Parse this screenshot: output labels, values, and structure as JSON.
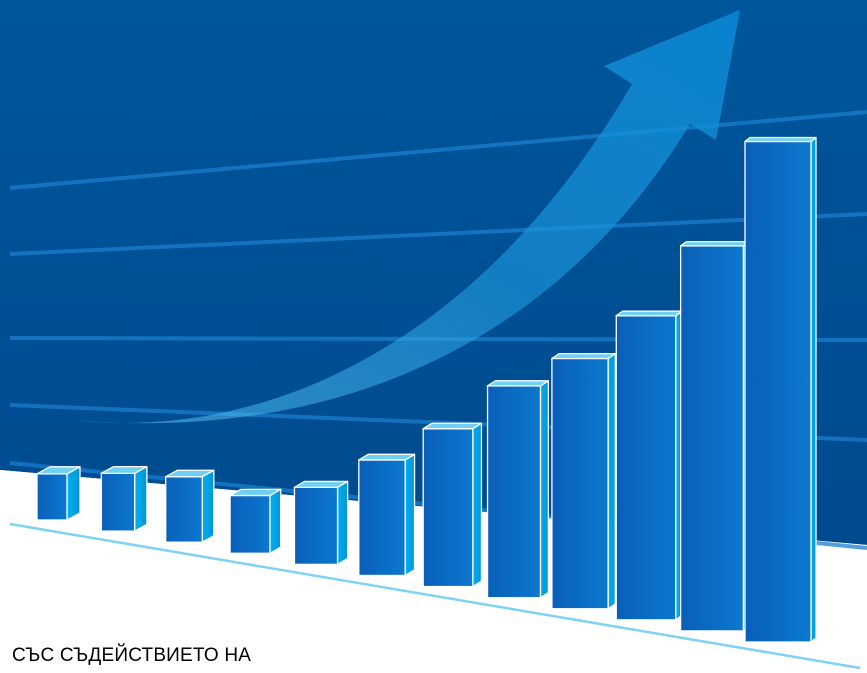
{
  "caption": "СЪС СЪДЕЙСТВИЕТО НА",
  "colors": {
    "background_top": "#00569a",
    "background_bottom": "#004a8f",
    "floor": "#ffffff",
    "bar_front": "#0a6fc6",
    "bar_side": "#02a6e6",
    "bar_top": "#6fd0f4",
    "bar_outline": "#ffffff",
    "arrow": "#2aa3e0",
    "grid_line": "#1a7fcf",
    "floor_line": "#7ed3f2"
  },
  "icons": {
    "arrow": "upward-trend-arrow-icon"
  },
  "chart_data": {
    "type": "bar",
    "categories": [
      "",
      "",
      "",
      "",
      "",
      "",
      "",
      "",
      "",
      "",
      "",
      ""
    ],
    "values": [
      1.2,
      1.5,
      1.7,
      1.5,
      2.0,
      3.0,
      4.1,
      5.5,
      6.5,
      7.9,
      10.0,
      13.0
    ],
    "title": "",
    "xlabel": "",
    "ylabel": "",
    "grid": true,
    "legend": "none"
  }
}
